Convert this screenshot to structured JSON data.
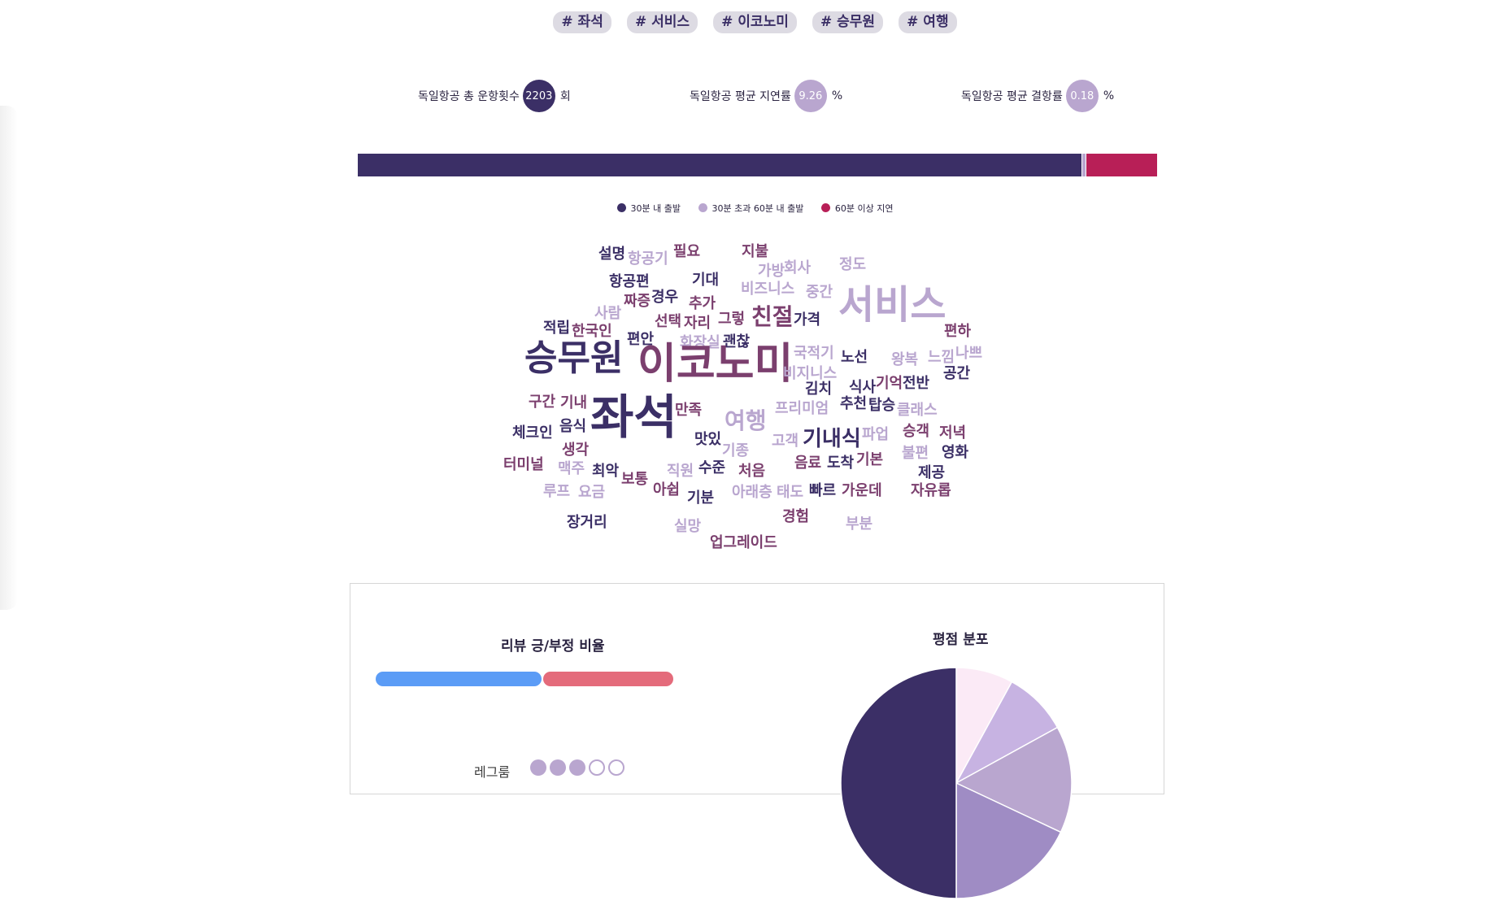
{
  "tags": [
    "# 좌석",
    "# 서비스",
    "# 이코노미",
    "# 승무원",
    "# 여행"
  ],
  "stats": [
    {
      "label": "독일항공 총 운항횟수",
      "value": "2203",
      "unit": "회",
      "color": "#3b2f66"
    },
    {
      "label": "독일항공 평균 지연률",
      "value": "9.26",
      "unit": "%",
      "color": "#b9a6cf"
    },
    {
      "label": "독일항공 평균 결항률",
      "value": "0.18",
      "unit": "%",
      "color": "#b9a6cf"
    }
  ],
  "delay_bar": {
    "within_30": 90.56,
    "between_30_60": 0.4,
    "over_60": 8.8,
    "colors": {
      "within_30": "#3b2f66",
      "between_30_60": "#b9a6cf",
      "over_60": "#b81f57"
    }
  },
  "legend": [
    {
      "label": "30분 내 출발",
      "color": "#3b2f66"
    },
    {
      "label": "30분 초과 60분 내 출발",
      "color": "#b9a6cf"
    },
    {
      "label": "60분 이상 지연",
      "color": "#b81f57"
    }
  ],
  "wordcloud": [
    {
      "text": "설명",
      "color": "#3b2f66"
    },
    {
      "text": "항공기",
      "color": "#b9a6cf"
    },
    {
      "text": "필요",
      "color": "#7b3f6e"
    },
    {
      "text": "지불",
      "color": "#7b3f6e"
    },
    {
      "text": "회사",
      "color": "#b9a6cf"
    },
    {
      "text": "가방",
      "color": "#b9a6cf"
    },
    {
      "text": "정도",
      "color": "#b9a6cf"
    },
    {
      "text": "항공편",
      "color": "#3b2f66"
    },
    {
      "text": "기대",
      "color": "#3b2f66"
    },
    {
      "text": "비즈니스",
      "color": "#b9a6cf"
    },
    {
      "text": "중간",
      "color": "#b9a6cf"
    },
    {
      "text": "짜증",
      "color": "#7b3f6e"
    },
    {
      "text": "경우",
      "color": "#3b2f66"
    },
    {
      "text": "추가",
      "color": "#7b3f6e"
    },
    {
      "text": "사람",
      "color": "#b9a6cf"
    },
    {
      "text": "서비스",
      "color": "#b9a6cf"
    },
    {
      "text": "선택",
      "color": "#7b3f6e"
    },
    {
      "text": "자리",
      "color": "#7b3f6e"
    },
    {
      "text": "그렇",
      "color": "#7b3f6e"
    },
    {
      "text": "친절",
      "color": "#7b3f6e"
    },
    {
      "text": "가격",
      "color": "#3b2f66"
    },
    {
      "text": "적립",
      "color": "#3b2f66"
    },
    {
      "text": "한국인",
      "color": "#7b3f6e"
    },
    {
      "text": "편하",
      "color": "#7b3f6e"
    },
    {
      "text": "편안",
      "color": "#3b2f66"
    },
    {
      "text": "화장실",
      "color": "#b9a6cf"
    },
    {
      "text": "괜찮",
      "color": "#3b2f66"
    },
    {
      "text": "국적기",
      "color": "#b9a6cf"
    },
    {
      "text": "노선",
      "color": "#3b2f66"
    },
    {
      "text": "왕복",
      "color": "#b9a6cf"
    },
    {
      "text": "느낌",
      "color": "#b9a6cf"
    },
    {
      "text": "나쁘",
      "color": "#b9a6cf"
    },
    {
      "text": "승무원",
      "color": "#3b2f66"
    },
    {
      "text": "이코노미",
      "color": "#7b3f6e"
    },
    {
      "text": "비지니스",
      "color": "#b9a6cf"
    },
    {
      "text": "식사",
      "color": "#3b2f66"
    },
    {
      "text": "기억",
      "color": "#7b3f6e"
    },
    {
      "text": "전반",
      "color": "#3b2f66"
    },
    {
      "text": "공간",
      "color": "#3b2f66"
    },
    {
      "text": "김치",
      "color": "#3b2f66"
    },
    {
      "text": "구간",
      "color": "#7b3f6e"
    },
    {
      "text": "기내",
      "color": "#7b3f6e"
    },
    {
      "text": "추천",
      "color": "#3b2f66"
    },
    {
      "text": "탑승",
      "color": "#3b2f66"
    },
    {
      "text": "클래스",
      "color": "#b9a6cf"
    },
    {
      "text": "만족",
      "color": "#7b3f6e"
    },
    {
      "text": "프리미엄",
      "color": "#b9a6cf"
    },
    {
      "text": "좌석",
      "color": "#3b2f66"
    },
    {
      "text": "여행",
      "color": "#b9a6cf"
    },
    {
      "text": "음식",
      "color": "#3b2f66"
    },
    {
      "text": "체크인",
      "color": "#3b2f66"
    },
    {
      "text": "승객",
      "color": "#7b3f6e"
    },
    {
      "text": "저녁",
      "color": "#7b3f6e"
    },
    {
      "text": "맛있",
      "color": "#3b2f66"
    },
    {
      "text": "고객",
      "color": "#b9a6cf"
    },
    {
      "text": "기내식",
      "color": "#3b2f66"
    },
    {
      "text": "파업",
      "color": "#b9a6cf"
    },
    {
      "text": "생각",
      "color": "#7b3f6e"
    },
    {
      "text": "기종",
      "color": "#b9a6cf"
    },
    {
      "text": "영화",
      "color": "#3b2f66"
    },
    {
      "text": "터미널",
      "color": "#7b3f6e"
    },
    {
      "text": "음료",
      "color": "#7b3f6e"
    },
    {
      "text": "도착",
      "color": "#3b2f66"
    },
    {
      "text": "기본",
      "color": "#7b3f6e"
    },
    {
      "text": "불편",
      "color": "#b9a6cf"
    },
    {
      "text": "맥주",
      "color": "#b9a6cf"
    },
    {
      "text": "최악",
      "color": "#3b2f66"
    },
    {
      "text": "직원",
      "color": "#b9a6cf"
    },
    {
      "text": "수준",
      "color": "#3b2f66"
    },
    {
      "text": "처음",
      "color": "#7b3f6e"
    },
    {
      "text": "제공",
      "color": "#3b2f66"
    },
    {
      "text": "보통",
      "color": "#7b3f6e"
    },
    {
      "text": "루프",
      "color": "#b9a6cf"
    },
    {
      "text": "요금",
      "color": "#b9a6cf"
    },
    {
      "text": "아쉽",
      "color": "#7b3f6e"
    },
    {
      "text": "기분",
      "color": "#3b2f66"
    },
    {
      "text": "아래층",
      "color": "#b9a6cf"
    },
    {
      "text": "태도",
      "color": "#b9a6cf"
    },
    {
      "text": "빠르",
      "color": "#3b2f66"
    },
    {
      "text": "가운데",
      "color": "#7b3f6e"
    },
    {
      "text": "자유롭",
      "color": "#7b3f6e"
    },
    {
      "text": "경험",
      "color": "#7b3f6e"
    },
    {
      "text": "장거리",
      "color": "#3b2f66"
    },
    {
      "text": "실망",
      "color": "#b9a6cf"
    },
    {
      "text": "부분",
      "color": "#b9a6cf"
    },
    {
      "text": "업그레이드",
      "color": "#7b3f6e"
    }
  ],
  "review_panel": {
    "ratio_title": "리뷰 긍/부정 비율",
    "positive_pct": 56,
    "negative_pct": 44,
    "positive_color": "#5b9cf6",
    "negative_color": "#e46b7b",
    "rating_title": "평점 분포",
    "legroom": {
      "label": "레그룸",
      "score": 3,
      "max": 5,
      "color": "#b9a6cf"
    }
  },
  "chart_data": {
    "type": "pie",
    "title": "평점 분포",
    "slices": [
      {
        "value": 8,
        "color": "#fbeaf6"
      },
      {
        "value": 9,
        "color": "#c7b3e2"
      },
      {
        "value": 15,
        "color": "#b9a6cf"
      },
      {
        "value": 18,
        "color": "#9f8cc4"
      },
      {
        "value": 50,
        "color": "#3b2f66"
      }
    ]
  }
}
